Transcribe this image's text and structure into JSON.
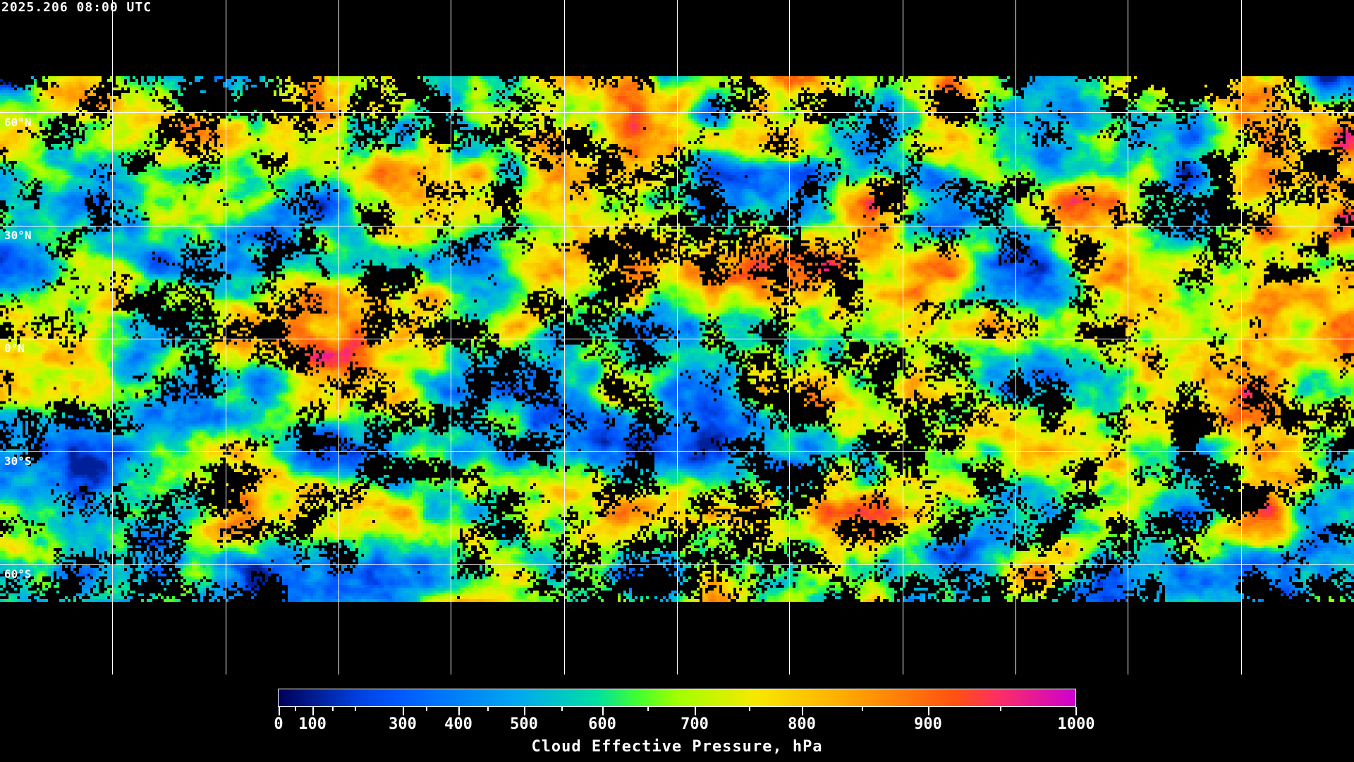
{
  "header": {
    "timestamp": "2025.206 08:00 UTC"
  },
  "map": {
    "projection": "equirectangular",
    "latitude_labels": [
      "60°N",
      "30°N",
      "0°N",
      "30°S",
      "60°S"
    ],
    "gridlines": true,
    "coastline_color": "#ffffff",
    "no_data_color": "#000000"
  },
  "colorbar": {
    "title": "Cloud Effective Pressure, hPa",
    "tick_labels": [
      "0",
      "100",
      "300",
      "400",
      "500",
      "600",
      "700",
      "800",
      "900",
      "1000"
    ],
    "range": [
      0,
      1000
    ],
    "colors": [
      "#000055",
      "#0040e0",
      "#0058ff",
      "#00a8f0",
      "#00e0a0",
      "#40ff30",
      "#a0ff00",
      "#f8e800",
      "#ffb000",
      "#ff5010",
      "#ff3060",
      "#cc00d0"
    ]
  }
}
